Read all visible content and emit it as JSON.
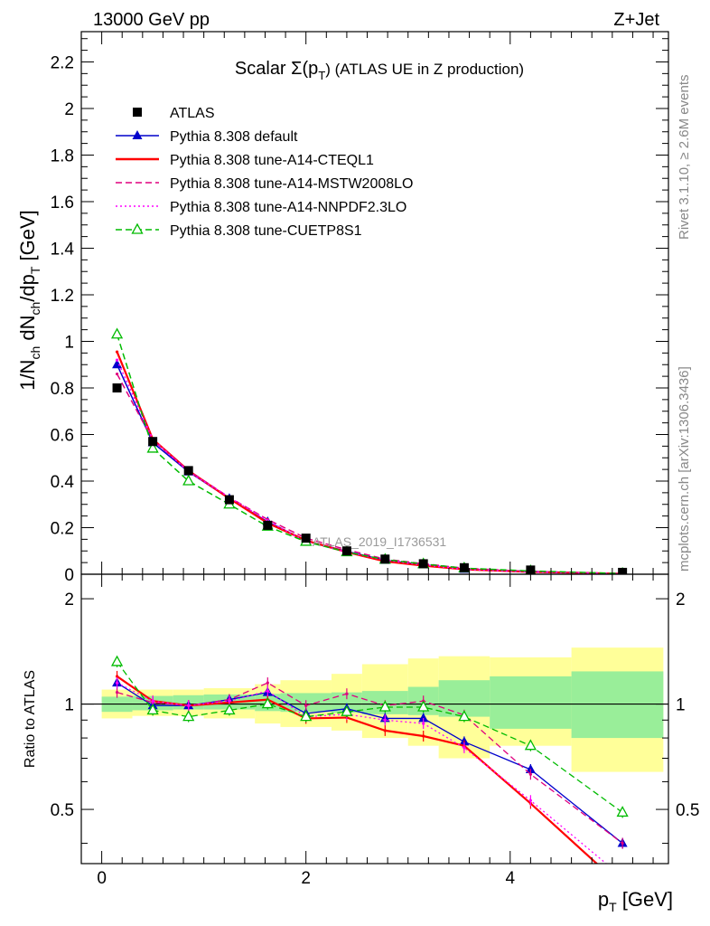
{
  "chart_data": {
    "type": "line",
    "header_left": "13000 GeV pp",
    "header_right": "Z+Jet",
    "title_main": "Scalar Σ(p",
    "title_sub": "T",
    "title_rest": ") (ATLAS UE in Z production)",
    "ylabel_top": "1/N_ch dN_ch/dp_T [GeV]",
    "ylabel_ratio": "Ratio to ATLAS",
    "xlabel": "p_T [GeV]",
    "side_right_top": "Rivet 3.1.10, ≥ 2.6M events",
    "side_right_bottom": "mcplots.cern.ch [arXiv:1306.3436]",
    "watermark": "ATLAS_2019_I1736531",
    "xlim": [
      -0.2,
      5.55
    ],
    "ylim_top": [
      0,
      2.33
    ],
    "ylim_ratio": [
      0.35,
      2.35
    ],
    "xticks": [
      "0",
      "2",
      "4"
    ],
    "yticks_top": [
      "0",
      "0.2",
      "0.4",
      "0.6",
      "0.8",
      "1",
      "1.2",
      "1.4",
      "1.6",
      "1.8",
      "2",
      "2.2"
    ],
    "yticks_ratio": [
      "0.5",
      "1",
      "2"
    ],
    "x": [
      0.15,
      0.5,
      0.85,
      1.25,
      1.625,
      2.0,
      2.4,
      2.775,
      3.15,
      3.55,
      4.2,
      5.1
    ],
    "data_series": {
      "name": "ATLAS",
      "values": [
        0.8,
        0.57,
        0.445,
        0.32,
        0.21,
        0.155,
        0.1,
        0.065,
        0.045,
        0.028,
        0.018,
        0.008
      ]
    },
    "bands": {
      "x_edges": [
        0,
        0.3,
        0.7,
        1.0,
        1.5,
        1.75,
        2.25,
        2.55,
        3.0,
        3.3,
        3.8,
        4.6,
        5.5
      ],
      "inner_lo": [
        0.95,
        0.96,
        0.965,
        0.965,
        0.955,
        0.95,
        0.945,
        0.935,
        0.93,
        0.92,
        0.85,
        0.8
      ],
      "inner_hi": [
        1.05,
        1.055,
        1.06,
        1.065,
        1.07,
        1.075,
        1.08,
        1.09,
        1.12,
        1.17,
        1.2,
        1.24
      ],
      "outer_lo": [
        0.91,
        0.925,
        0.925,
        0.91,
        0.88,
        0.86,
        0.84,
        0.8,
        0.76,
        0.7,
        0.76,
        0.64
      ],
      "outer_hi": [
        1.1,
        1.1,
        1.1,
        1.11,
        1.14,
        1.17,
        1.22,
        1.3,
        1.35,
        1.37,
        1.36,
        1.45
      ]
    },
    "series": [
      {
        "name": "Pythia 8.308 default",
        "color": "#0000cc",
        "style": "solid",
        "marker": "triangle-filled",
        "values": [
          0.9,
          0.565,
          0.44,
          0.325,
          0.225,
          0.145,
          0.098,
          0.06,
          0.041,
          0.022,
          0.012,
          0.002
        ],
        "ratio": [
          1.15,
          0.99,
          0.99,
          1.03,
          1.08,
          0.94,
          0.97,
          0.91,
          0.91,
          0.78,
          0.65,
          0.4
        ]
      },
      {
        "name": "Pythia 8.308 tune-A14-CTEQL1",
        "color": "#ff0000",
        "style": "solid",
        "marker": "none",
        "values": [
          0.955,
          0.58,
          0.445,
          0.325,
          0.22,
          0.145,
          0.095,
          0.055,
          0.037,
          0.021,
          0.01,
          0.002
        ],
        "ratio": [
          1.2,
          1.02,
          0.99,
          1.01,
          1.03,
          0.91,
          0.915,
          0.84,
          0.81,
          0.76,
          0.52,
          0.3
        ]
      },
      {
        "name": "Pythia 8.308 tune-A14-MSTW2008LO",
        "color": "#e0007f",
        "style": "dashed",
        "marker": "none",
        "values": [
          0.86,
          0.575,
          0.445,
          0.33,
          0.235,
          0.155,
          0.105,
          0.065,
          0.045,
          0.026,
          0.012,
          0.003
        ],
        "ratio": [
          1.08,
          1.01,
          0.99,
          1.03,
          1.15,
          0.99,
          1.07,
          0.99,
          1.02,
          0.93,
          0.63,
          0.4
        ]
      },
      {
        "name": "Pythia 8.308 tune-A14-NNPDF2.3LO",
        "color": "#ff00ff",
        "style": "dotted",
        "marker": "none",
        "values": [
          0.92,
          0.58,
          0.44,
          0.33,
          0.23,
          0.14,
          0.095,
          0.06,
          0.04,
          0.021,
          0.01,
          0.002
        ],
        "ratio": [
          1.15,
          1.02,
          0.99,
          1.02,
          1.09,
          0.92,
          0.935,
          0.9,
          0.88,
          0.75,
          0.53,
          0.32
        ]
      },
      {
        "name": "Pythia 8.308 tune-CUETP8S1",
        "color": "#00bb00",
        "style": "dashed",
        "marker": "triangle-open",
        "values": [
          1.03,
          0.54,
          0.4,
          0.3,
          0.205,
          0.14,
          0.095,
          0.063,
          0.044,
          0.026,
          0.014,
          0.003
        ],
        "ratio": [
          1.32,
          0.96,
          0.92,
          0.96,
          1.0,
          0.92,
          0.95,
          0.98,
          0.98,
          0.92,
          0.76,
          0.49
        ]
      }
    ]
  }
}
